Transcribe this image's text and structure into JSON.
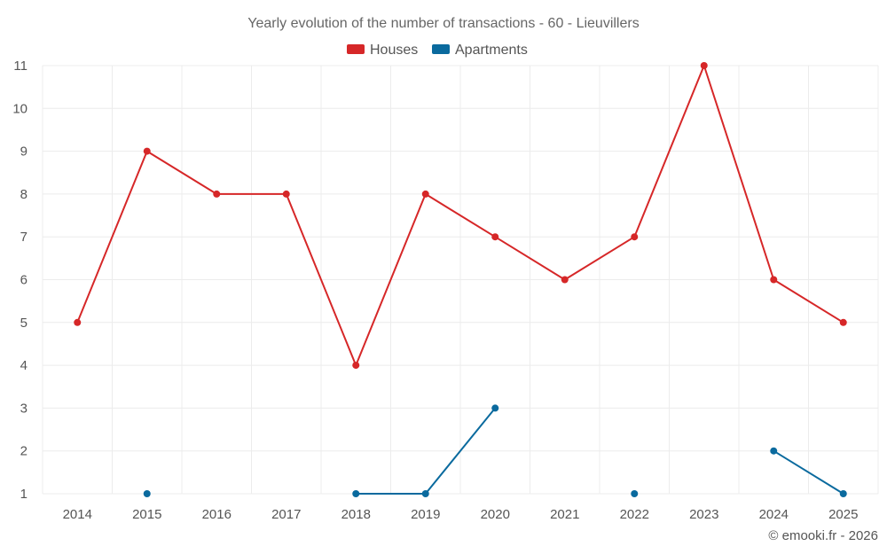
{
  "chart_data": {
    "type": "line",
    "title": "Yearly evolution of the number of transactions - 60 - Lieuvillers",
    "categories": [
      "2014",
      "2015",
      "2016",
      "2017",
      "2018",
      "2019",
      "2020",
      "2021",
      "2022",
      "2023",
      "2024",
      "2025"
    ],
    "ylim": [
      1,
      11
    ],
    "yticks": [
      1,
      2,
      3,
      4,
      5,
      6,
      7,
      8,
      9,
      10,
      11
    ],
    "grid": true,
    "legend_position": "top-center",
    "series": [
      {
        "name": "Houses",
        "color": "#d62728",
        "values": [
          5,
          9,
          8,
          8,
          4,
          8,
          7,
          6,
          7,
          11,
          6,
          5
        ]
      },
      {
        "name": "Apartments",
        "color": "#0a6a9e",
        "values": [
          null,
          1,
          null,
          null,
          1,
          1,
          3,
          null,
          1,
          null,
          2,
          1
        ]
      }
    ]
  },
  "footer": {
    "credit": "© emooki.fr - 2026"
  }
}
